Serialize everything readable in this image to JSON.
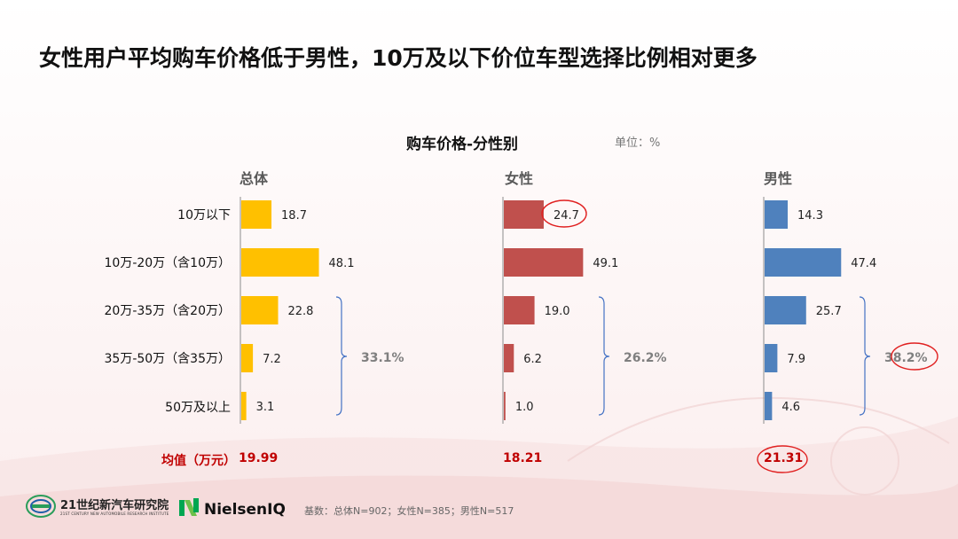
{
  "page": {
    "title": "女性用户平均购车价格低于男性，10万及以下价位车型选择比例相对更多"
  },
  "chart_data": {
    "type": "bar",
    "title": "购车价格-分性别",
    "unit_label": "单位：%",
    "categories": [
      "10万以下",
      "10万-20万（含10万）",
      "20万-35万（含20万）",
      "35万-50万（含35万）",
      "50万及以上"
    ],
    "series": [
      {
        "name": "总体",
        "values": [
          18.7,
          48.1,
          22.8,
          7.2,
          3.1
        ],
        "value_labels": [
          "18.7",
          "48.1",
          "22.8",
          "7.2",
          "3.1"
        ],
        "color": "#ffc000",
        "bracket_total": "33.1%",
        "avg": "19.99"
      },
      {
        "name": "女性",
        "values": [
          24.7,
          49.1,
          19.0,
          6.2,
          1.0
        ],
        "value_labels": [
          "24.7",
          "49.1",
          "19.0",
          "6.2",
          "1.0"
        ],
        "color": "#c0504d",
        "bracket_total": "26.2%",
        "avg": "18.21"
      },
      {
        "name": "男性",
        "values": [
          14.3,
          47.4,
          25.7,
          7.9,
          4.6
        ],
        "value_labels": [
          "14.3",
          "47.4",
          "25.7",
          "7.9",
          "4.6"
        ],
        "color": "#4f81bd",
        "bracket_total": "38.2%",
        "avg": "21.31"
      }
    ],
    "xlim": [
      0,
      50
    ],
    "bracket_covers": [
      "20万-35万（含20万）",
      "35万-50万（含35万）",
      "50万及以上"
    ],
    "avg_label": "均值（万元）",
    "highlights": [
      "女性 10万以下 24.7",
      "男性 33.1% bracket 38.2%",
      "男性 均值 21.31"
    ],
    "bracket_color": "#4472c4",
    "highlight_color": "#e02020"
  },
  "footer": {
    "base": "基数：总体N=902；女性N=385；男性N=517",
    "logo1_name": "21世纪新汽车研究院",
    "logo1_sub": "21ST CENTURY NEW AUTOMOBILE RESEARCH INSTITUTE",
    "logo2_name": "NielsenIQ"
  }
}
